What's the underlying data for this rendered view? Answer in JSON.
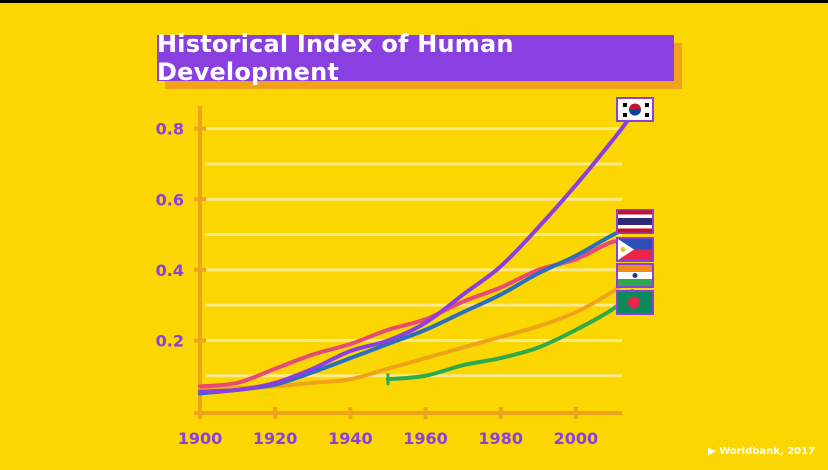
{
  "chart_data": {
    "type": "line",
    "title": "Historical Index of Human Development",
    "xlabel": "",
    "ylabel": "",
    "xlim": [
      1900,
      2016
    ],
    "ylim": [
      0.02,
      0.85
    ],
    "x_ticks": [
      1900,
      1920,
      1940,
      1960,
      1980,
      2000
    ],
    "y_ticks": [
      0.2,
      0.4,
      0.6,
      0.8
    ],
    "y_tick_labels": [
      "0.2",
      "0.4",
      "0.6",
      "0.8"
    ],
    "grid": true,
    "legend": "flag icons at right end of each line",
    "source": "Worldbank, 2017",
    "colors": {
      "background": "#fbd600",
      "axis": "#f0a21a",
      "tick_label": "#8a3fe0",
      "title_box": "#8a3fe0",
      "gridline": "#fce98a"
    },
    "series": [
      {
        "flag": "south-korea-flag-icon",
        "color": "#8a3fe0",
        "x": [
          1900,
          1910,
          1920,
          1930,
          1940,
          1950,
          1960,
          1970,
          1980,
          1990,
          2000,
          2010,
          2015
        ],
        "y": [
          0.055,
          0.06,
          0.08,
          0.12,
          0.17,
          0.2,
          0.25,
          0.33,
          0.41,
          0.52,
          0.64,
          0.77,
          0.84
        ]
      },
      {
        "flag": "thailand-flag-icon",
        "color": "#2a6fc0",
        "x": [
          1900,
          1910,
          1920,
          1930,
          1940,
          1950,
          1960,
          1970,
          1980,
          1990,
          2000,
          2010,
          2015
        ],
        "y": [
          0.05,
          0.06,
          0.075,
          0.11,
          0.15,
          0.19,
          0.23,
          0.28,
          0.33,
          0.39,
          0.44,
          0.5,
          0.52
        ]
      },
      {
        "flag": "philippines-flag-icon",
        "color": "#e84a78",
        "x": [
          1900,
          1910,
          1920,
          1930,
          1940,
          1950,
          1960,
          1970,
          1980,
          1990,
          2000,
          2010,
          2015
        ],
        "y": [
          0.07,
          0.08,
          0.12,
          0.16,
          0.19,
          0.23,
          0.26,
          0.31,
          0.35,
          0.4,
          0.43,
          0.48,
          0.47
        ]
      },
      {
        "flag": "india-flag-icon",
        "color": "#f0a21a",
        "x": [
          1900,
          1910,
          1920,
          1930,
          1940,
          1950,
          1960,
          1970,
          1980,
          1990,
          2000,
          2010,
          2015
        ],
        "y": [
          0.06,
          0.065,
          0.07,
          0.08,
          0.09,
          0.12,
          0.15,
          0.18,
          0.21,
          0.24,
          0.28,
          0.34,
          0.38
        ]
      },
      {
        "flag": "bangladesh-flag-icon",
        "color": "#2eaa4a",
        "x": [
          1950,
          1960,
          1970,
          1980,
          1990,
          2000,
          2010,
          2015
        ],
        "y": [
          0.09,
          0.1,
          0.13,
          0.15,
          0.18,
          0.23,
          0.29,
          0.34
        ]
      }
    ]
  }
}
